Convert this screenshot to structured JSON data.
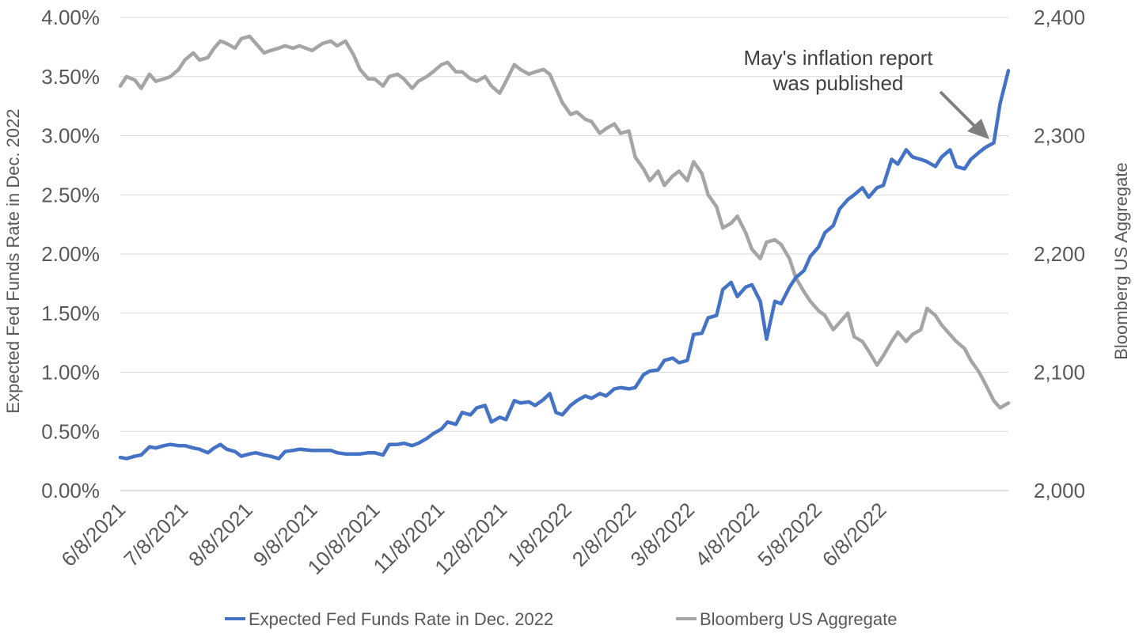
{
  "chart_data": {
    "type": "line",
    "title": "",
    "xlabel": "",
    "ylabel_left": "Expected Fed Funds Rate in Dec. 2022",
    "ylabel_right": "Bloomberg US Aggregate",
    "x_tick_labels": [
      "6/8/2021",
      "7/8/2021",
      "8/8/2021",
      "9/8/2021",
      "10/8/2021",
      "11/8/2021",
      "12/8/2021",
      "1/8/2022",
      "2/8/2022",
      "3/8/2022",
      "4/8/2022",
      "5/8/2022",
      "6/8/2022"
    ],
    "y_left": {
      "min": 0,
      "max": 4,
      "step": 0.5,
      "tick_labels": [
        "0.00%",
        "0.50%",
        "1.00%",
        "1.50%",
        "2.00%",
        "2.50%",
        "3.00%",
        "3.50%",
        "4.00%"
      ]
    },
    "y_right": {
      "min": 2000,
      "max": 2400,
      "step": 100,
      "tick_labels": [
        "2,000",
        "2,100",
        "2,200",
        "2,300",
        "2,400"
      ]
    },
    "grid": "horizontal",
    "legend_position": "bottom",
    "annotation": {
      "line1": "May's inflation report",
      "line2": "was published"
    },
    "series": [
      {
        "name": "Expected Fed Funds Rate in Dec. 2022",
        "axis": "left",
        "color": "#4472C4",
        "points": [
          [
            "2021-06-08",
            0.28
          ],
          [
            "2021-06-11",
            0.27
          ],
          [
            "2021-06-15",
            0.29
          ],
          [
            "2021-06-18",
            0.3
          ],
          [
            "2021-06-22",
            0.37
          ],
          [
            "2021-06-25",
            0.36
          ],
          [
            "2021-06-29",
            0.38
          ],
          [
            "2021-07-02",
            0.39
          ],
          [
            "2021-07-06",
            0.38
          ],
          [
            "2021-07-09",
            0.38
          ],
          [
            "2021-07-13",
            0.36
          ],
          [
            "2021-07-16",
            0.35
          ],
          [
            "2021-07-20",
            0.32
          ],
          [
            "2021-07-23",
            0.36
          ],
          [
            "2021-07-26",
            0.39
          ],
          [
            "2021-07-29",
            0.35
          ],
          [
            "2021-08-02",
            0.33
          ],
          [
            "2021-08-05",
            0.29
          ],
          [
            "2021-08-09",
            0.31
          ],
          [
            "2021-08-12",
            0.32
          ],
          [
            "2021-08-16",
            0.3
          ],
          [
            "2021-08-19",
            0.29
          ],
          [
            "2021-08-23",
            0.27
          ],
          [
            "2021-08-26",
            0.33
          ],
          [
            "2021-08-30",
            0.34
          ],
          [
            "2021-09-02",
            0.35
          ],
          [
            "2021-09-08",
            0.34
          ],
          [
            "2021-09-13",
            0.34
          ],
          [
            "2021-09-17",
            0.34
          ],
          [
            "2021-09-20",
            0.32
          ],
          [
            "2021-09-24",
            0.31
          ],
          [
            "2021-09-28",
            0.31
          ],
          [
            "2021-10-01",
            0.31
          ],
          [
            "2021-10-05",
            0.32
          ],
          [
            "2021-10-08",
            0.32
          ],
          [
            "2021-10-12",
            0.3
          ],
          [
            "2021-10-15",
            0.39
          ],
          [
            "2021-10-19",
            0.39
          ],
          [
            "2021-10-22",
            0.4
          ],
          [
            "2021-10-26",
            0.38
          ],
          [
            "2021-10-29",
            0.4
          ],
          [
            "2021-11-02",
            0.44
          ],
          [
            "2021-11-05",
            0.48
          ],
          [
            "2021-11-09",
            0.52
          ],
          [
            "2021-11-12",
            0.58
          ],
          [
            "2021-11-16",
            0.56
          ],
          [
            "2021-11-19",
            0.66
          ],
          [
            "2021-11-23",
            0.64
          ],
          [
            "2021-11-26",
            0.7
          ],
          [
            "2021-11-30",
            0.72
          ],
          [
            "2021-12-03",
            0.58
          ],
          [
            "2021-12-07",
            0.62
          ],
          [
            "2021-12-10",
            0.6
          ],
          [
            "2021-12-14",
            0.76
          ],
          [
            "2021-12-17",
            0.74
          ],
          [
            "2021-12-21",
            0.75
          ],
          [
            "2021-12-24",
            0.72
          ],
          [
            "2021-12-28",
            0.77
          ],
          [
            "2021-12-31",
            0.82
          ],
          [
            "2022-01-03",
            0.66
          ],
          [
            "2022-01-06",
            0.64
          ],
          [
            "2022-01-10",
            0.72
          ],
          [
            "2022-01-13",
            0.76
          ],
          [
            "2022-01-17",
            0.8
          ],
          [
            "2022-01-20",
            0.78
          ],
          [
            "2022-01-24",
            0.82
          ],
          [
            "2022-01-27",
            0.8
          ],
          [
            "2022-01-31",
            0.86
          ],
          [
            "2022-02-03",
            0.87
          ],
          [
            "2022-02-07",
            0.86
          ],
          [
            "2022-02-10",
            0.87
          ],
          [
            "2022-02-14",
            0.98
          ],
          [
            "2022-02-17",
            1.01
          ],
          [
            "2022-02-21",
            1.02
          ],
          [
            "2022-02-24",
            1.1
          ],
          [
            "2022-02-28",
            1.12
          ],
          [
            "2022-03-03",
            1.08
          ],
          [
            "2022-03-07",
            1.1
          ],
          [
            "2022-03-10",
            1.32
          ],
          [
            "2022-03-14",
            1.33
          ],
          [
            "2022-03-17",
            1.46
          ],
          [
            "2022-03-21",
            1.48
          ],
          [
            "2022-03-24",
            1.7
          ],
          [
            "2022-03-28",
            1.76
          ],
          [
            "2022-03-31",
            1.64
          ],
          [
            "2022-04-04",
            1.72
          ],
          [
            "2022-04-07",
            1.74
          ],
          [
            "2022-04-11",
            1.6
          ],
          [
            "2022-04-14",
            1.28
          ],
          [
            "2022-04-18",
            1.6
          ],
          [
            "2022-04-21",
            1.58
          ],
          [
            "2022-04-25",
            1.72
          ],
          [
            "2022-04-28",
            1.8
          ],
          [
            "2022-05-02",
            1.86
          ],
          [
            "2022-05-05",
            1.98
          ],
          [
            "2022-05-09",
            2.06
          ],
          [
            "2022-05-12",
            2.18
          ],
          [
            "2022-05-16",
            2.24
          ],
          [
            "2022-05-19",
            2.38
          ],
          [
            "2022-05-23",
            2.46
          ],
          [
            "2022-05-26",
            2.5
          ],
          [
            "2022-05-30",
            2.56
          ],
          [
            "2022-06-02",
            2.48
          ],
          [
            "2022-06-06",
            2.56
          ],
          [
            "2022-06-09",
            2.58
          ],
          [
            "2022-06-13",
            2.8
          ],
          [
            "2022-06-16",
            2.76
          ],
          [
            "2022-06-20",
            2.88
          ],
          [
            "2022-06-23",
            2.82
          ],
          [
            "2022-06-27",
            2.8
          ],
          [
            "2022-06-30",
            2.78
          ],
          [
            "2022-07-04",
            2.74
          ],
          [
            "2022-07-07",
            2.82
          ],
          [
            "2022-07-11",
            2.88
          ],
          [
            "2022-07-14",
            2.74
          ],
          [
            "2022-07-18",
            2.72
          ],
          [
            "2022-07-21",
            2.8
          ],
          [
            "2022-07-25",
            2.86
          ],
          [
            "2022-07-28",
            2.9
          ],
          [
            "2022-08-01",
            2.94
          ],
          [
            "2022-08-04",
            3.27
          ],
          [
            "2022-08-08",
            3.55
          ]
        ]
      },
      {
        "name": "Bloomberg US Aggregate",
        "axis": "right",
        "color": "#A5A5A5",
        "points": [
          [
            "2021-06-08",
            2342
          ],
          [
            "2021-06-11",
            2350
          ],
          [
            "2021-06-15",
            2347
          ],
          [
            "2021-06-18",
            2340
          ],
          [
            "2021-06-22",
            2352
          ],
          [
            "2021-06-25",
            2346
          ],
          [
            "2021-06-29",
            2348
          ],
          [
            "2021-07-02",
            2350
          ],
          [
            "2021-07-06",
            2356
          ],
          [
            "2021-07-09",
            2364
          ],
          [
            "2021-07-13",
            2370
          ],
          [
            "2021-07-16",
            2364
          ],
          [
            "2021-07-20",
            2366
          ],
          [
            "2021-07-23",
            2374
          ],
          [
            "2021-07-26",
            2380
          ],
          [
            "2021-07-29",
            2378
          ],
          [
            "2021-08-02",
            2374
          ],
          [
            "2021-08-05",
            2382
          ],
          [
            "2021-08-09",
            2384
          ],
          [
            "2021-08-12",
            2378
          ],
          [
            "2021-08-16",
            2370
          ],
          [
            "2021-08-19",
            2372
          ],
          [
            "2021-08-23",
            2374
          ],
          [
            "2021-08-26",
            2376
          ],
          [
            "2021-08-30",
            2374
          ],
          [
            "2021-09-02",
            2376
          ],
          [
            "2021-09-08",
            2372
          ],
          [
            "2021-09-13",
            2378
          ],
          [
            "2021-09-17",
            2380
          ],
          [
            "2021-09-20",
            2376
          ],
          [
            "2021-09-24",
            2380
          ],
          [
            "2021-09-28",
            2368
          ],
          [
            "2021-10-01",
            2356
          ],
          [
            "2021-10-05",
            2348
          ],
          [
            "2021-10-08",
            2348
          ],
          [
            "2021-10-12",
            2342
          ],
          [
            "2021-10-15",
            2350
          ],
          [
            "2021-10-19",
            2352
          ],
          [
            "2021-10-22",
            2348
          ],
          [
            "2021-10-26",
            2340
          ],
          [
            "2021-10-29",
            2346
          ],
          [
            "2021-11-02",
            2350
          ],
          [
            "2021-11-05",
            2354
          ],
          [
            "2021-11-09",
            2360
          ],
          [
            "2021-11-12",
            2362
          ],
          [
            "2021-11-16",
            2354
          ],
          [
            "2021-11-19",
            2354
          ],
          [
            "2021-11-23",
            2348
          ],
          [
            "2021-11-26",
            2346
          ],
          [
            "2021-11-30",
            2350
          ],
          [
            "2021-12-03",
            2342
          ],
          [
            "2021-12-07",
            2336
          ],
          [
            "2021-12-10",
            2346
          ],
          [
            "2021-12-14",
            2360
          ],
          [
            "2021-12-17",
            2356
          ],
          [
            "2021-12-21",
            2352
          ],
          [
            "2021-12-24",
            2354
          ],
          [
            "2021-12-28",
            2356
          ],
          [
            "2021-12-31",
            2352
          ],
          [
            "2022-01-03",
            2340
          ],
          [
            "2022-01-06",
            2328
          ],
          [
            "2022-01-10",
            2318
          ],
          [
            "2022-01-13",
            2320
          ],
          [
            "2022-01-17",
            2314
          ],
          [
            "2022-01-20",
            2312
          ],
          [
            "2022-01-24",
            2302
          ],
          [
            "2022-01-27",
            2306
          ],
          [
            "2022-01-31",
            2310
          ],
          [
            "2022-02-03",
            2302
          ],
          [
            "2022-02-07",
            2304
          ],
          [
            "2022-02-10",
            2282
          ],
          [
            "2022-02-14",
            2272
          ],
          [
            "2022-02-17",
            2262
          ],
          [
            "2022-02-21",
            2270
          ],
          [
            "2022-02-24",
            2258
          ],
          [
            "2022-02-28",
            2266
          ],
          [
            "2022-03-03",
            2270
          ],
          [
            "2022-03-07",
            2262
          ],
          [
            "2022-03-10",
            2278
          ],
          [
            "2022-03-14",
            2268
          ],
          [
            "2022-03-17",
            2250
          ],
          [
            "2022-03-21",
            2240
          ],
          [
            "2022-03-24",
            2222
          ],
          [
            "2022-03-28",
            2226
          ],
          [
            "2022-03-31",
            2232
          ],
          [
            "2022-04-04",
            2218
          ],
          [
            "2022-04-07",
            2204
          ],
          [
            "2022-04-11",
            2196
          ],
          [
            "2022-04-14",
            2210
          ],
          [
            "2022-04-18",
            2212
          ],
          [
            "2022-04-21",
            2208
          ],
          [
            "2022-04-25",
            2196
          ],
          [
            "2022-04-28",
            2180
          ],
          [
            "2022-05-02",
            2168
          ],
          [
            "2022-05-05",
            2160
          ],
          [
            "2022-05-09",
            2152
          ],
          [
            "2022-05-12",
            2148
          ],
          [
            "2022-05-16",
            2136
          ],
          [
            "2022-05-19",
            2142
          ],
          [
            "2022-05-23",
            2150
          ],
          [
            "2022-05-26",
            2130
          ],
          [
            "2022-05-30",
            2126
          ],
          [
            "2022-06-02",
            2118
          ],
          [
            "2022-06-06",
            2106
          ],
          [
            "2022-06-09",
            2114
          ],
          [
            "2022-06-13",
            2126
          ],
          [
            "2022-06-16",
            2134
          ],
          [
            "2022-06-20",
            2126
          ],
          [
            "2022-06-23",
            2132
          ],
          [
            "2022-06-27",
            2136
          ],
          [
            "2022-06-30",
            2154
          ],
          [
            "2022-07-04",
            2148
          ],
          [
            "2022-07-07",
            2140
          ],
          [
            "2022-07-11",
            2132
          ],
          [
            "2022-07-14",
            2126
          ],
          [
            "2022-07-18",
            2120
          ],
          [
            "2022-07-21",
            2110
          ],
          [
            "2022-07-25",
            2100
          ],
          [
            "2022-07-28",
            2090
          ],
          [
            "2022-08-01",
            2076
          ],
          [
            "2022-08-04",
            2070
          ],
          [
            "2022-08-08",
            2074
          ]
        ]
      }
    ]
  }
}
